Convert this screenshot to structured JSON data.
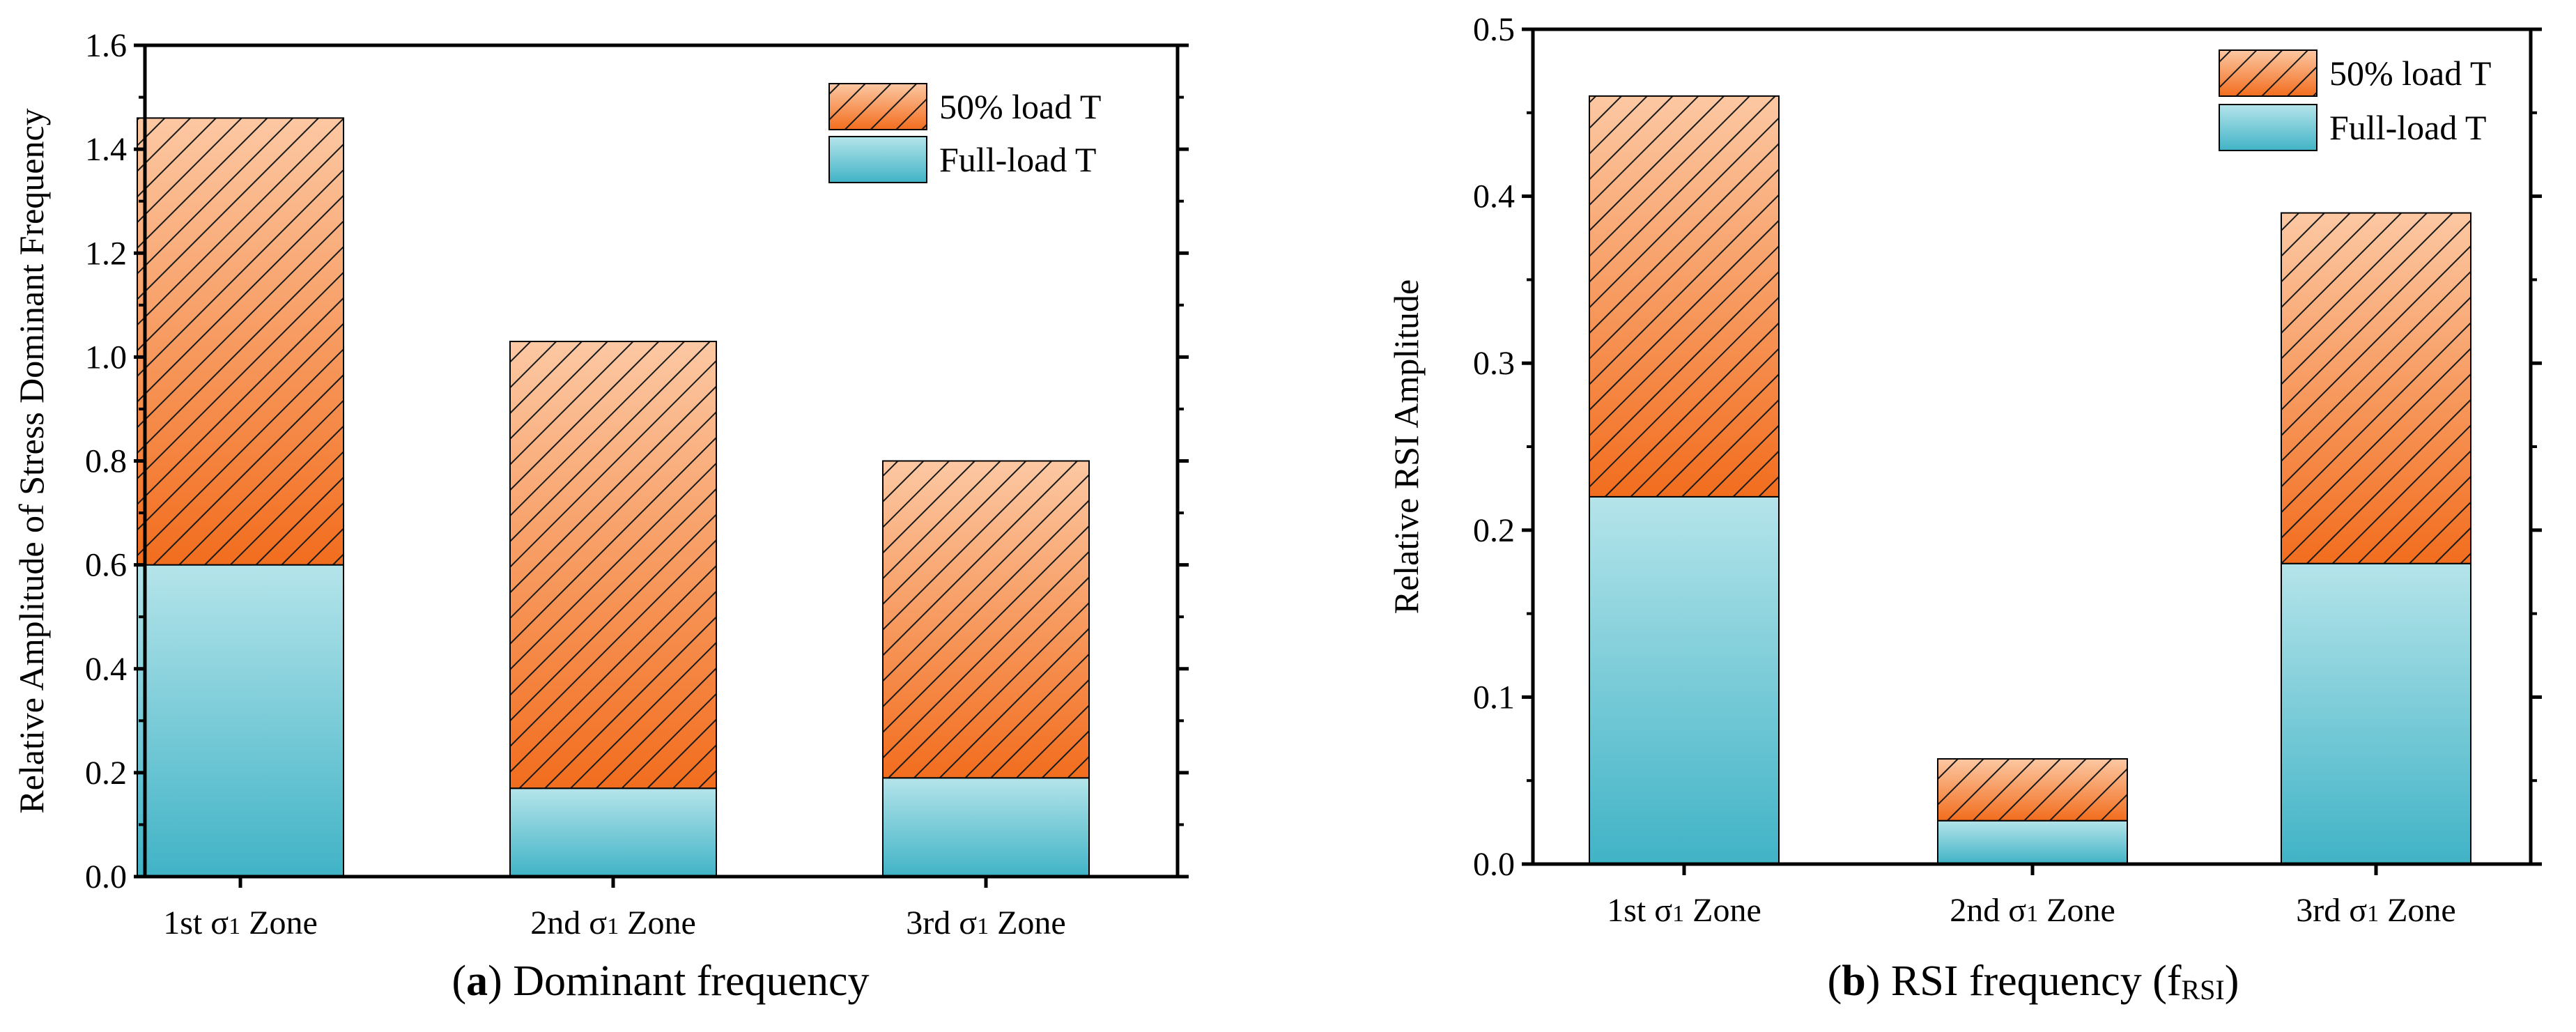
{
  "chart_data": [
    {
      "type": "bar",
      "stacked": true,
      "panel_label": "a",
      "caption": "Dominant frequency",
      "categories": [
        "1st σ₁ Zone",
        "2nd σ₁ Zone",
        "3rd σ₁ Zone"
      ],
      "series": [
        {
          "name": "Full-load T",
          "values": [
            0.6,
            0.17,
            0.19
          ],
          "color_top": "#b5e4ea",
          "color_bottom": "#40b3c6",
          "pattern": "solid-gradient"
        },
        {
          "name": "50% load T",
          "values": [
            0.86,
            0.86,
            0.61
          ],
          "color_top": "#fcc8a3",
          "color_bottom": "#f26d1e",
          "pattern": "hatched"
        }
      ],
      "ylabel": "Relative Amplitude of Stress Dominant Frequency",
      "xlabel": "",
      "ylim": [
        0,
        1.6
      ],
      "yticks": [
        0.0,
        0.2,
        0.4,
        0.6,
        0.8,
        1.0,
        1.2,
        1.4,
        1.6
      ],
      "ytick_labels": [
        "0.0",
        "0.2",
        "0.4",
        "0.6",
        "0.8",
        "1.0",
        "1.2",
        "1.4",
        "1.6"
      ],
      "legend": {
        "position": "top-right",
        "entries": [
          "50% load T",
          "Full-load T"
        ]
      },
      "grid": false
    },
    {
      "type": "bar",
      "stacked": true,
      "panel_label": "b",
      "caption": "RSI frequency (",
      "caption_sub": "f",
      "caption_subscript": "RSI",
      "caption_end": ")",
      "categories": [
        "1st σ₁ Zone",
        "2nd σ₁ Zone",
        "3rd σ₁ Zone"
      ],
      "series": [
        {
          "name": "Full-load T",
          "values": [
            0.22,
            0.026,
            0.18
          ],
          "color_top": "#b5e4ea",
          "color_bottom": "#40b3c6",
          "pattern": "solid-gradient"
        },
        {
          "name": "50% load T",
          "values": [
            0.24,
            0.037,
            0.21
          ],
          "color_top": "#fcc8a3",
          "color_bottom": "#f26d1e",
          "pattern": "hatched"
        }
      ],
      "ylabel": "Relative RSI Amplitude",
      "xlabel": "",
      "ylim": [
        0,
        0.5
      ],
      "yticks": [
        0.0,
        0.1,
        0.2,
        0.3,
        0.4,
        0.5
      ],
      "ytick_labels": [
        "0.0",
        "0.1",
        "0.2",
        "0.3",
        "0.4",
        "0.5"
      ],
      "legend": {
        "position": "top-right",
        "entries": [
          "50% load T",
          "Full-load T"
        ]
      },
      "grid": false
    }
  ]
}
